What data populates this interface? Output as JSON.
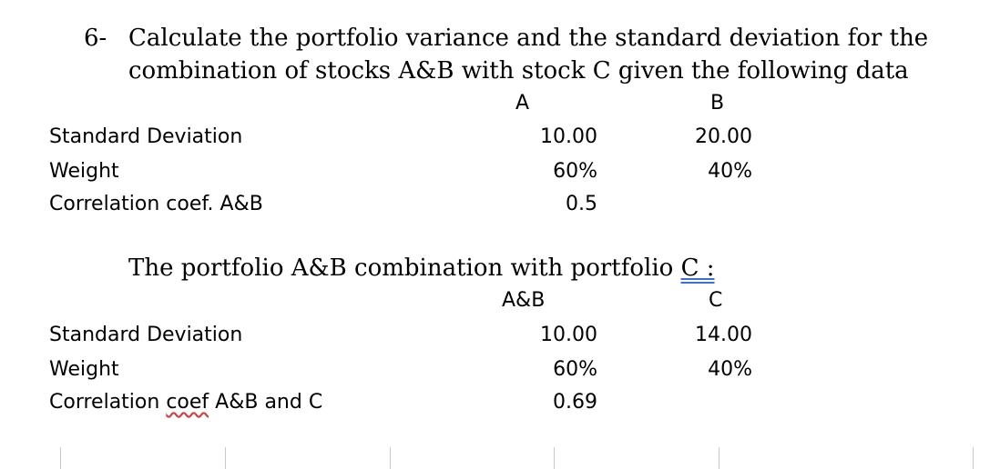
{
  "question": {
    "number": "6-",
    "line1": "Calculate the portfolio variance and the standard deviation for the",
    "line2": "combination of stocks A&B with stock C given the following data"
  },
  "table1": {
    "col_a": "A",
    "col_b": "B",
    "rows": [
      {
        "label": "Standard Deviation",
        "a": "10.00",
        "b": "20.00"
      },
      {
        "label": "Weight",
        "a": "60%",
        "b": "40%"
      },
      {
        "label": "Correlation coef. A&B",
        "a": "0.5",
        "b": ""
      }
    ]
  },
  "section2": {
    "heading_main": "The portfolio A&B combination with portfolio ",
    "heading_c": "C :"
  },
  "table2": {
    "col_a": "A&B",
    "col_b": "C",
    "rows": [
      {
        "label": "Standard Deviation",
        "a": "10.00",
        "b": "14.00"
      },
      {
        "label": "Weight",
        "a": "60%",
        "b": "40%"
      },
      {
        "label_prefix": "Correlation ",
        "label_coef": "coef",
        "label_suffix": " A&B and C",
        "a": "0.69",
        "b": ""
      }
    ]
  },
  "colors": {
    "text": "#000000",
    "double_underline": "#3a6fd8",
    "spell_squiggle": "#d04040",
    "ruler_tick": "#c8c8c8"
  }
}
